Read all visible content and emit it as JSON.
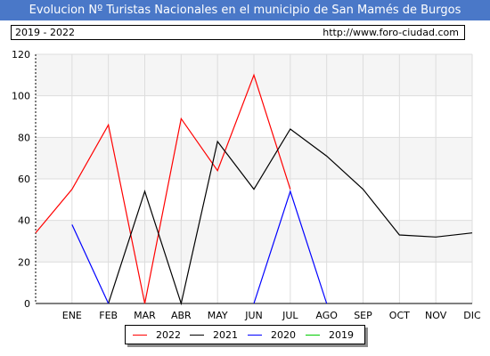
{
  "header": {
    "title": "Evolucion Nº Turistas Nacionales en el municipio de San Mamés de Burgos",
    "range": "2019 - 2022",
    "url": "http://www.foro-ciudad.com"
  },
  "colors": {
    "title_bg": "#4a78c8",
    "grid": "#dddddd",
    "band": "#f5f5f5"
  },
  "chart_data": {
    "type": "line",
    "title": "Evolucion Nº Turistas Nacionales en el municipio de San Mamés de Burgos",
    "xlabel": "",
    "ylabel": "",
    "categories": [
      "ENE",
      "FEB",
      "MAR",
      "ABR",
      "MAY",
      "JUN",
      "JUL",
      "AGO",
      "SEP",
      "OCT",
      "NOV",
      "DIC"
    ],
    "ylim": [
      0,
      120
    ],
    "yticks": [
      0,
      20,
      40,
      60,
      80,
      100,
      120
    ],
    "grid": true,
    "legend_position": "bottom",
    "series": [
      {
        "name": "2022",
        "color": "#ff0000",
        "start_value": 34,
        "values": [
          55,
          86,
          0,
          89,
          64,
          110,
          55,
          null,
          null,
          null,
          null,
          null
        ]
      },
      {
        "name": "2021",
        "color": "#000000",
        "start_value": null,
        "values": [
          null,
          0,
          54,
          0,
          78,
          55,
          84,
          71,
          55,
          33,
          32,
          34
        ]
      },
      {
        "name": "2020",
        "color": "#0000ff",
        "start_value": null,
        "values": [
          38,
          0,
          null,
          null,
          null,
          0,
          54,
          0,
          null,
          null,
          null,
          null
        ]
      },
      {
        "name": "2019",
        "color": "#00cc00",
        "start_value": null,
        "values": [
          null,
          null,
          null,
          null,
          null,
          null,
          null,
          null,
          null,
          null,
          null,
          null
        ]
      }
    ]
  }
}
